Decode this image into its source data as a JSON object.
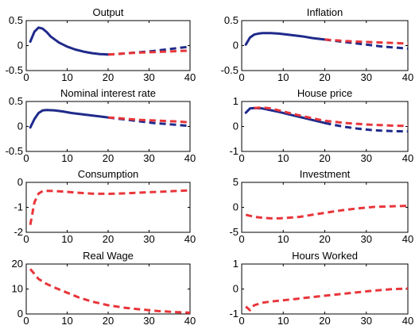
{
  "chart_data": [
    {
      "type": "line",
      "title": "Output",
      "xlim": [
        0,
        40
      ],
      "ylim": [
        -0.5,
        0.5
      ],
      "xticks": [
        "0",
        "10",
        "20",
        "30",
        "40"
      ],
      "yticks": [
        "-0.5",
        "0",
        "0.5"
      ],
      "series": [
        {
          "style": "solid",
          "color": "#1f2a8a",
          "x": [
            1,
            2,
            3,
            4,
            5,
            6,
            8,
            10,
            12,
            14,
            16,
            18,
            20
          ],
          "y": [
            0.08,
            0.28,
            0.36,
            0.34,
            0.27,
            0.18,
            0.06,
            -0.02,
            -0.08,
            -0.12,
            -0.15,
            -0.17,
            -0.18
          ]
        },
        {
          "style": "dashed",
          "color": "#1f2a8a",
          "x": [
            20,
            22,
            25,
            28,
            31,
            34,
            37,
            40
          ],
          "y": [
            -0.18,
            -0.17,
            -0.15,
            -0.13,
            -0.11,
            -0.08,
            -0.05,
            -0.02
          ]
        },
        {
          "style": "dashed",
          "color": "#e8353a",
          "x": [
            20,
            22,
            25,
            28,
            31,
            34,
            37,
            40
          ],
          "y": [
            -0.18,
            -0.17,
            -0.15,
            -0.14,
            -0.13,
            -0.12,
            -0.11,
            -0.1
          ]
        }
      ]
    },
    {
      "type": "line",
      "title": "Inflation",
      "xlim": [
        0,
        40
      ],
      "ylim": [
        -0.5,
        0.5
      ],
      "xticks": [
        "0",
        "10",
        "20",
        "30",
        "40"
      ],
      "yticks": [
        "-0.5",
        "0",
        "0.5"
      ],
      "series": [
        {
          "style": "solid",
          "color": "#1f2a8a",
          "x": [
            1,
            2,
            3,
            4,
            5,
            7,
            9,
            11,
            13,
            15,
            17,
            19,
            20
          ],
          "y": [
            0.02,
            0.16,
            0.22,
            0.24,
            0.25,
            0.25,
            0.24,
            0.22,
            0.2,
            0.18,
            0.15,
            0.13,
            0.12
          ]
        },
        {
          "style": "dashed",
          "color": "#1f2a8a",
          "x": [
            20,
            22,
            25,
            28,
            31,
            34,
            37,
            40
          ],
          "y": [
            0.12,
            0.1,
            0.07,
            0.04,
            0.01,
            -0.02,
            -0.04,
            -0.06
          ]
        },
        {
          "style": "dashed",
          "color": "#e8353a",
          "x": [
            20,
            22,
            25,
            28,
            31,
            34,
            37,
            40
          ],
          "y": [
            0.12,
            0.11,
            0.09,
            0.08,
            0.07,
            0.06,
            0.05,
            0.04
          ]
        }
      ]
    },
    {
      "type": "line",
      "title": "Nominal interest rate",
      "xlim": [
        0,
        40
      ],
      "ylim": [
        -0.5,
        0.5
      ],
      "xticks": [
        "0",
        "10",
        "20",
        "30",
        "40"
      ],
      "yticks": [
        "-0.5",
        "0",
        "0.5"
      ],
      "series": [
        {
          "style": "solid",
          "color": "#1f2a8a",
          "x": [
            1,
            2,
            3,
            4,
            5,
            7,
            9,
            11,
            13,
            15,
            17,
            19,
            20
          ],
          "y": [
            -0.02,
            0.15,
            0.27,
            0.32,
            0.33,
            0.32,
            0.3,
            0.27,
            0.25,
            0.23,
            0.21,
            0.19,
            0.18
          ]
        },
        {
          "style": "dashed",
          "color": "#1f2a8a",
          "x": [
            20,
            22,
            25,
            28,
            31,
            34,
            37,
            40
          ],
          "y": [
            0.18,
            0.16,
            0.13,
            0.1,
            0.07,
            0.05,
            0.03,
            0.01
          ]
        },
        {
          "style": "dashed",
          "color": "#e8353a",
          "x": [
            20,
            22,
            25,
            28,
            31,
            34,
            37,
            40
          ],
          "y": [
            0.18,
            0.17,
            0.15,
            0.13,
            0.12,
            0.11,
            0.1,
            0.08
          ]
        }
      ]
    },
    {
      "type": "line",
      "title": "House price",
      "xlim": [
        0,
        40
      ],
      "ylim": [
        -1,
        1
      ],
      "xticks": [
        "0",
        "10",
        "20",
        "30",
        "40"
      ],
      "yticks": [
        "-1",
        "0",
        "1"
      ],
      "series": [
        {
          "style": "solid",
          "color": "#1f2a8a",
          "x": [
            1,
            2,
            3,
            5,
            7,
            9,
            11,
            13,
            15,
            17,
            19,
            20
          ],
          "y": [
            0.55,
            0.72,
            0.74,
            0.72,
            0.65,
            0.58,
            0.5,
            0.42,
            0.34,
            0.26,
            0.18,
            0.14
          ]
        },
        {
          "style": "dashed",
          "color": "#1f2a8a",
          "x": [
            20,
            22,
            25,
            28,
            31,
            34,
            37,
            40
          ],
          "y": [
            0.14,
            0.07,
            -0.02,
            -0.09,
            -0.14,
            -0.17,
            -0.19,
            -0.2
          ]
        },
        {
          "style": "dashed",
          "color": "#e8353a",
          "x": [
            3,
            5,
            7,
            9,
            11,
            13,
            15,
            17,
            19,
            20,
            22,
            25,
            28,
            31,
            34,
            37,
            40
          ],
          "y": [
            0.74,
            0.76,
            0.72,
            0.64,
            0.56,
            0.48,
            0.4,
            0.33,
            0.26,
            0.23,
            0.19,
            0.14,
            0.1,
            0.07,
            0.05,
            0.03,
            0.02
          ]
        }
      ]
    },
    {
      "type": "line",
      "title": "Consumption",
      "xlim": [
        0,
        40
      ],
      "ylim": [
        -2,
        0
      ],
      "xticks": [
        "0",
        "10",
        "20",
        "30",
        "40"
      ],
      "yticks": [
        "-2",
        "-1",
        "0"
      ],
      "series": [
        {
          "style": "dashed",
          "color": "#e8353a",
          "x": [
            1,
            2,
            3,
            4,
            5,
            7,
            10,
            13,
            16,
            20,
            24,
            28,
            32,
            36,
            40
          ],
          "y": [
            -1.7,
            -0.8,
            -0.45,
            -0.35,
            -0.34,
            -0.35,
            -0.38,
            -0.42,
            -0.45,
            -0.46,
            -0.44,
            -0.41,
            -0.38,
            -0.35,
            -0.32
          ]
        }
      ]
    },
    {
      "type": "line",
      "title": "Investment",
      "xlim": [
        0,
        40
      ],
      "ylim": [
        -5,
        5
      ],
      "xticks": [
        "0",
        "10",
        "20",
        "30",
        "40"
      ],
      "yticks": [
        "-5",
        "0",
        "5"
      ],
      "series": [
        {
          "style": "dashed",
          "color": "#e8353a",
          "x": [
            1,
            3,
            5,
            7,
            9,
            11,
            14,
            17,
            20,
            24,
            28,
            32,
            36,
            40
          ],
          "y": [
            -1.5,
            -1.9,
            -2.1,
            -2.2,
            -2.2,
            -2.1,
            -1.9,
            -1.5,
            -1.1,
            -0.6,
            -0.2,
            0.1,
            0.2,
            0.3
          ]
        }
      ]
    },
    {
      "type": "line",
      "title": "Real Wage",
      "xlim": [
        0,
        40
      ],
      "ylim": [
        0,
        20
      ],
      "xticks": [
        "0",
        "10",
        "20",
        "30",
        "40"
      ],
      "yticks": [
        "0",
        "10",
        "20"
      ],
      "series": [
        {
          "style": "dashed",
          "color": "#e8353a",
          "x": [
            1,
            2,
            3,
            5,
            7,
            10,
            13,
            16,
            20,
            24,
            28,
            32,
            36,
            40
          ],
          "y": [
            18,
            16,
            14,
            12,
            10.5,
            8.5,
            6.5,
            5,
            3.5,
            2.5,
            1.8,
            1.2,
            0.8,
            0.5
          ]
        }
      ]
    },
    {
      "type": "line",
      "title": "Hours Worked",
      "xlim": [
        0,
        40
      ],
      "ylim": [
        -1,
        1
      ],
      "xticks": [
        "0",
        "10",
        "20",
        "30",
        "40"
      ],
      "yticks": [
        "-1",
        "0",
        "1"
      ],
      "series": [
        {
          "style": "dashed",
          "color": "#e8353a",
          "x": [
            1,
            2,
            3,
            5,
            7,
            10,
            13,
            16,
            20,
            24,
            28,
            32,
            36,
            40
          ],
          "y": [
            -0.7,
            -0.85,
            -0.65,
            -0.55,
            -0.5,
            -0.45,
            -0.4,
            -0.34,
            -0.27,
            -0.2,
            -0.13,
            -0.06,
            -0.01,
            0.02
          ]
        }
      ]
    }
  ]
}
